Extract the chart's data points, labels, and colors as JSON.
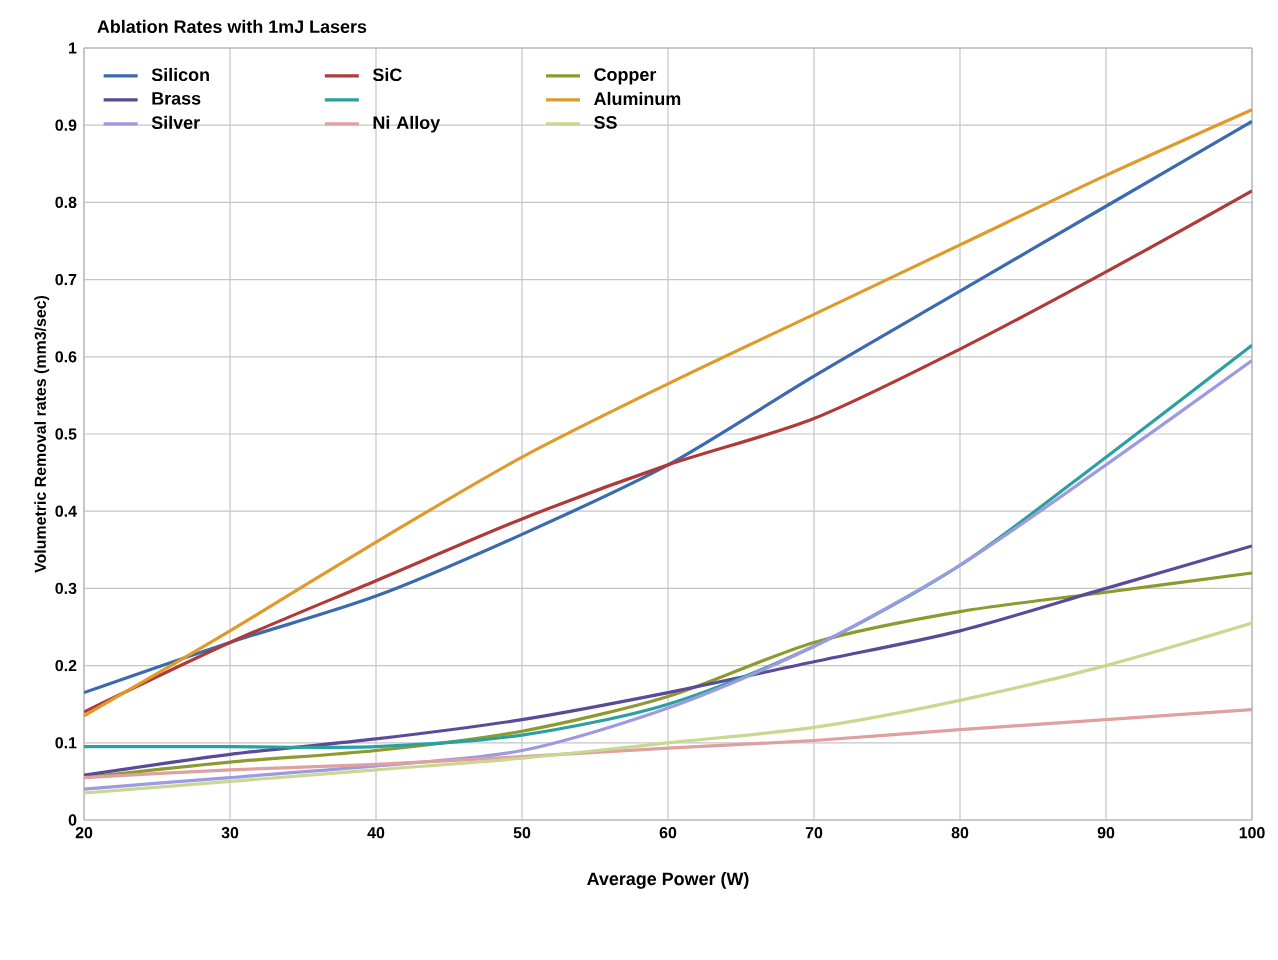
{
  "chart_data": {
    "type": "line",
    "title": "Ablation Rates with 1mJ Lasers",
    "xlabel": "Average Power (W)",
    "ylabel": "Volumetric Removal rates (mm3/sec)",
    "x": [
      20,
      30,
      40,
      50,
      60,
      70,
      80,
      90,
      100
    ],
    "xlim": [
      20,
      100
    ],
    "xticks": [
      20,
      30,
      40,
      50,
      60,
      70,
      80,
      90,
      100
    ],
    "ylim": [
      0,
      1
    ],
    "yticks": [
      0,
      0.1,
      0.2,
      0.3,
      0.4,
      0.5,
      0.6,
      0.7,
      0.8,
      0.9,
      1
    ],
    "grid": true,
    "legend": "top left",
    "marker": "none",
    "line_style": "solid",
    "series": [
      {
        "name": "Silicon",
        "color": "#3a6ab0",
        "values": [
          0.165,
          0.23,
          0.29,
          0.37,
          0.46,
          0.575,
          0.685,
          0.795,
          0.905
        ]
      },
      {
        "name": "SiC",
        "color": "#b03a3a",
        "values": [
          0.14,
          0.23,
          0.31,
          0.39,
          0.46,
          0.52,
          0.61,
          0.71,
          0.815
        ]
      },
      {
        "name": "Copper",
        "color": "#8c9a2e",
        "values": [
          0.055,
          0.075,
          0.09,
          0.115,
          0.16,
          0.23,
          0.27,
          0.295,
          0.32
        ]
      },
      {
        "name": "Brass",
        "color": "#5a4a9a",
        "values": [
          0.058,
          0.085,
          0.105,
          0.13,
          0.165,
          0.205,
          0.245,
          0.3,
          0.355
        ]
      },
      {
        "color": "#2aa0a0",
        "values": [
          0.095,
          0.095,
          0.095,
          0.11,
          0.15,
          0.225,
          0.33,
          0.47,
          0.615
        ]
      },
      {
        "name": "Aluminum",
        "color": "#e09a2a",
        "values": [
          0.135,
          0.245,
          0.36,
          0.47,
          0.565,
          0.655,
          0.745,
          0.835,
          0.92
        ]
      },
      {
        "name": "Silver",
        "color": "#9e9ae0",
        "values": [
          0.04,
          0.055,
          0.07,
          0.09,
          0.145,
          0.225,
          0.33,
          0.46,
          0.595
        ]
      },
      {
        "name": "Ni Alloy",
        "color": "#e0a0a0",
        "values": [
          0.055,
          0.065,
          0.072,
          0.082,
          0.093,
          0.103,
          0.117,
          0.13,
          0.143
        ]
      },
      {
        "name": "SS",
        "color": "#c8d890",
        "values": [
          0.035,
          0.05,
          0.065,
          0.08,
          0.1,
          0.12,
          0.155,
          0.2,
          0.255
        ]
      }
    ]
  }
}
